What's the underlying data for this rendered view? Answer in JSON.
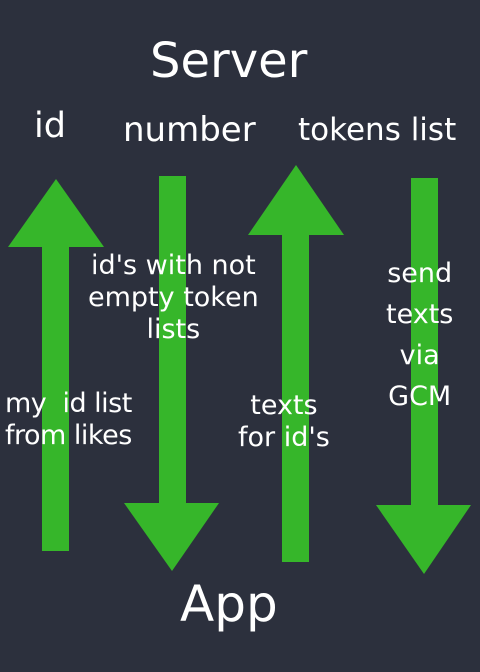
{
  "server_label": "Server",
  "app_label": "App",
  "arrow_color": "#36b62a",
  "background": "#2c303d",
  "columns": [
    {
      "top": "id",
      "mid": "my  id list\nfrom likes",
      "direction": "up"
    },
    {
      "top": "number",
      "mid": "id's with not\nempty token\nlists",
      "direction": "down"
    },
    {
      "top": "tokens list",
      "mid": "texts\nfor id's",
      "direction": "up"
    },
    {
      "top": "",
      "mid": "send\ntexts\nvia\nGCM",
      "direction": "down"
    }
  ]
}
